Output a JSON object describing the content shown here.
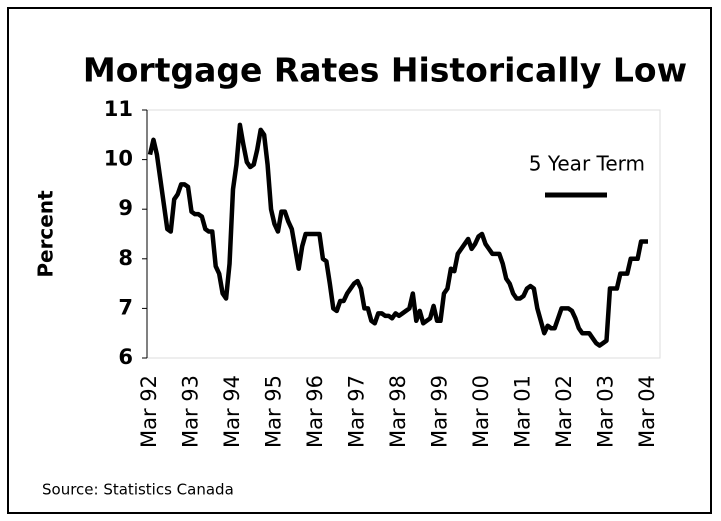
{
  "chart_data": {
    "type": "line",
    "title": "Mortgage Rates Historically Low",
    "y_label": "Percent",
    "source": "Source: Statistics Canada",
    "categories": [
      "Mar 92",
      null,
      null,
      null,
      null,
      null,
      null,
      null,
      null,
      null,
      null,
      null,
      "Mar 93",
      null,
      null,
      null,
      null,
      null,
      null,
      null,
      null,
      null,
      null,
      null,
      "Mar 94",
      null,
      null,
      null,
      null,
      null,
      null,
      null,
      null,
      null,
      null,
      null,
      "Mar 95",
      null,
      null,
      null,
      null,
      null,
      null,
      null,
      null,
      null,
      null,
      null,
      "Mar 96",
      null,
      null,
      null,
      null,
      null,
      null,
      null,
      null,
      null,
      null,
      null,
      "Mar 97",
      null,
      null,
      null,
      null,
      null,
      null,
      null,
      null,
      null,
      null,
      null,
      "Mar 98",
      null,
      null,
      null,
      null,
      null,
      null,
      null,
      null,
      null,
      null,
      null,
      "Mar 99",
      null,
      null,
      null,
      null,
      null,
      null,
      null,
      null,
      null,
      null,
      null,
      "Mar 00",
      null,
      null,
      null,
      null,
      null,
      null,
      null,
      null,
      null,
      null,
      null,
      "Mar 01",
      null,
      null,
      null,
      null,
      null,
      null,
      null,
      null,
      null,
      null,
      null,
      "Mar 02",
      null,
      null,
      null,
      null,
      null,
      null,
      null,
      null,
      null,
      null,
      null,
      "Mar 03",
      null,
      null,
      null,
      null,
      null,
      null,
      null,
      null,
      null,
      null,
      null,
      "Mar 04"
    ],
    "series": [
      {
        "name": "5 Year Term",
        "color": "#000000",
        "values": [
          10.1,
          10.4,
          10.1,
          9.6,
          9.1,
          8.6,
          8.55,
          9.2,
          9.3,
          9.5,
          9.5,
          9.45,
          8.95,
          8.9,
          8.9,
          8.85,
          8.6,
          8.55,
          8.55,
          7.85,
          7.7,
          7.3,
          7.2,
          7.9,
          9.4,
          9.9,
          10.7,
          10.3,
          9.95,
          9.85,
          9.9,
          10.2,
          10.6,
          10.5,
          9.9,
          9.0,
          8.7,
          8.55,
          8.95,
          8.95,
          8.75,
          8.6,
          8.2,
          7.8,
          8.25,
          8.5,
          8.5,
          8.5,
          8.5,
          8.5,
          8.0,
          7.95,
          7.5,
          7.0,
          6.95,
          7.15,
          7.15,
          7.3,
          7.4,
          7.5,
          7.55,
          7.4,
          7.0,
          7.0,
          6.75,
          6.7,
          6.9,
          6.9,
          6.85,
          6.85,
          6.8,
          6.9,
          6.85,
          6.9,
          6.95,
          7.0,
          7.3,
          6.75,
          6.95,
          6.7,
          6.75,
          6.8,
          7.05,
          6.75,
          6.75,
          7.3,
          7.4,
          7.8,
          7.75,
          8.1,
          8.2,
          8.3,
          8.4,
          8.2,
          8.3,
          8.45,
          8.5,
          8.3,
          8.2,
          8.1,
          8.1,
          8.1,
          7.9,
          7.6,
          7.5,
          7.3,
          7.2,
          7.2,
          7.25,
          7.4,
          7.45,
          7.4,
          7.0,
          6.75,
          6.5,
          6.65,
          6.6,
          6.6,
          6.8,
          7.0,
          7.0,
          7.0,
          6.95,
          6.8,
          6.6,
          6.5,
          6.5,
          6.5,
          6.4,
          6.3,
          6.25,
          6.3,
          6.35,
          7.4,
          7.4,
          7.4,
          7.7,
          7.7,
          7.7,
          8.0,
          8.0,
          8.0,
          8.35,
          8.35,
          8.35
        ]
      }
    ],
    "ylim": [
      6,
      11
    ],
    "yticks": [
      6,
      7,
      8,
      9,
      10,
      11
    ],
    "grid": false,
    "legend": "upper right"
  }
}
